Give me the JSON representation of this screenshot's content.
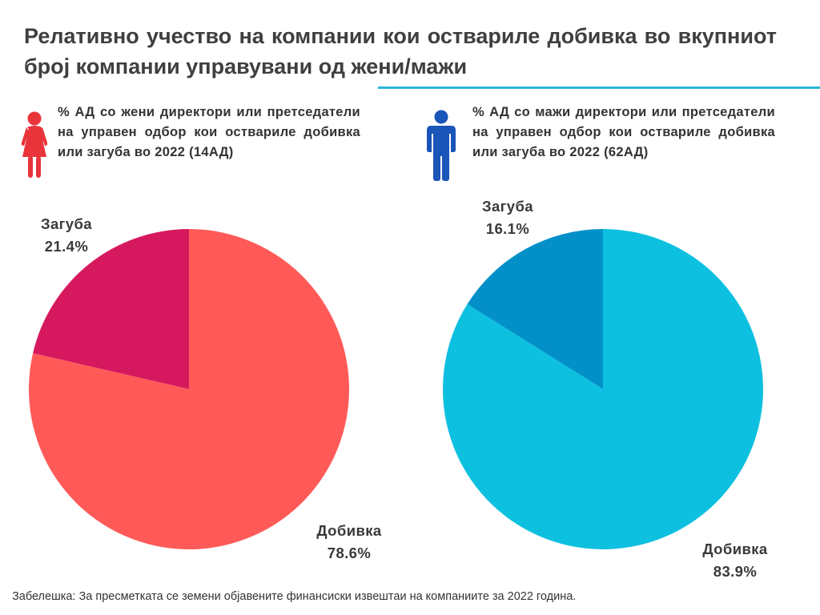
{
  "title": "Релативно учество на компании кои оствариле добивка во вкупниот број компании управувани од  жени/мажи",
  "colors": {
    "accent_line": "#29b6d8",
    "female_icon": "#e8343a",
    "male_icon": "#1a55b8"
  },
  "icons": {
    "female": "female-person-icon",
    "male": "male-person-icon"
  },
  "chart_data": [
    {
      "type": "pie",
      "title": "% АД со жени директори или претседатели на управен одбор кои оствариле добивка или загуба во 2022 (14АД)",
      "categories": [
        "Загуба",
        "Добивка"
      ],
      "values": [
        21.4,
        78.6
      ],
      "value_labels": [
        "21.4%",
        "78.6%"
      ],
      "colors": [
        "#d6195f",
        "#ff5a58"
      ],
      "start": "12 o'clock",
      "direction": "counterclockwise"
    },
    {
      "type": "pie",
      "title": "% АД со мажи директори или претседатели на управен одбор кои оствариле добивка или загуба во 2022 (62АД)",
      "categories": [
        "Загуба",
        "Добивка"
      ],
      "values": [
        16.1,
        83.9
      ],
      "value_labels": [
        "16.1%",
        "83.9%"
      ],
      "colors": [
        "#0390c9",
        "#0ec0e0"
      ],
      "start": "12 o'clock",
      "direction": "counterclockwise"
    }
  ],
  "footnote": "Забелешка: За пресметката се земени објавените финансиски извештаи на компаниите за 2022 година."
}
